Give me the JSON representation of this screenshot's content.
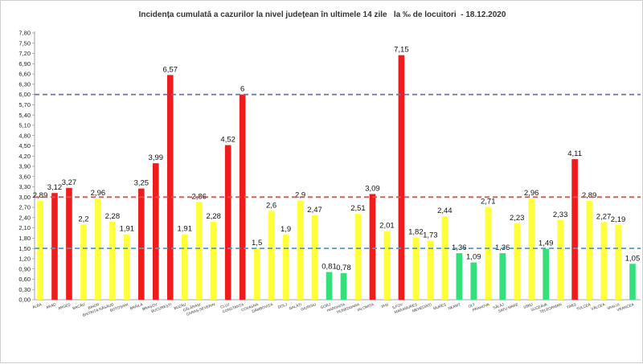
{
  "chart_data": {
    "type": "bar",
    "title": "Incidența cumulată a cazurilor la nivel județean în ultimele 14 zile   la ‰ de locuitori  - 18.12.2020",
    "xlabel": "",
    "ylabel": "",
    "ylim": [
      0,
      7.8
    ],
    "yticks": [
      "0,00",
      "0,30",
      "0,60",
      "0,90",
      "1,20",
      "1,50",
      "1,80",
      "2,10",
      "2,40",
      "2,70",
      "3,00",
      "3,30",
      "3,60",
      "3,90",
      "4,20",
      "4,50",
      "4,80",
      "5,10",
      "5,40",
      "5,70",
      "6,00",
      "6,30",
      "6,60",
      "6,90",
      "7,20",
      "7,50",
      "7,80"
    ],
    "grid": false,
    "reference_lines": [
      {
        "value": 6.0,
        "color": "#6b6fa8"
      },
      {
        "value": 3.0,
        "color": "#d9534f"
      },
      {
        "value": 1.5,
        "color": "#4a9fd0"
      }
    ],
    "colors": {
      "red": "#ee1c1c",
      "yellow": "#ffff3b",
      "green": "#33e07a"
    },
    "categories": [
      "ALBA",
      "ARAD",
      "ARGEȘ",
      "BACĂU",
      "BIHOR",
      "BISTRIȚA NĂSĂUD",
      "BOTOȘANI",
      "BRĂILA",
      "BRAȘOV",
      "BUCUREȘTI",
      "BUZĂU",
      "CĂLĂRAȘI",
      "CARAȘ-SEVERIN",
      "CLUJ",
      "CONSTANȚA",
      "COVASNA",
      "DÂMBOVIȚA",
      "DOLJ",
      "GALAȚI",
      "GIURGIU",
      "GORJ",
      "HARGHITA",
      "HUNEDOARA",
      "IALOMIȚA",
      "IAȘI",
      "ILFOV",
      "MARAMUREȘ",
      "MEHEDINȚI",
      "MUREȘ",
      "NEAMȚ",
      "OLT",
      "PRAHOVA",
      "SĂLAJ",
      "SATU MARE",
      "SIBIU",
      "SUCEAVA",
      "TELEORMAN",
      "TIMIȘ",
      "TULCEA",
      "VÂLCEA",
      "VASLUI",
      "VRANCEA"
    ],
    "values": [
      2.89,
      3.12,
      3.27,
      2.2,
      2.96,
      2.28,
      1.91,
      3.25,
      3.99,
      6.57,
      1.91,
      2.86,
      2.28,
      4.52,
      6,
      1.5,
      2.6,
      1.9,
      2.9,
      2.47,
      0.81,
      0.78,
      2.51,
      3.09,
      2.01,
      7.15,
      1.82,
      1.73,
      2.44,
      1.36,
      1.09,
      2.71,
      1.36,
      2.23,
      2.96,
      1.49,
      2.33,
      4.11,
      2.89,
      2.27,
      2.19,
      1.05
    ],
    "labels": [
      "2,89",
      "3,12",
      "3,27",
      "2,2",
      "2,96",
      "2,28",
      "1,91",
      "3,25",
      "3,99",
      "6,57",
      "1,91",
      "2,86",
      "2,28",
      "4,52",
      "6",
      "1,5",
      "2,6",
      "1,9",
      "2,9",
      "2,47",
      "0,81",
      "0,78",
      "2,51",
      "3,09",
      "2,01",
      "7,15",
      "1,82",
      "1,73",
      "2,44",
      "1,36",
      "1,09",
      "2,71",
      "1,36",
      "2,23",
      "2,96",
      "1,49",
      "2,33",
      "4,11",
      "2,89",
      "2,27",
      "2,19",
      "1,05"
    ],
    "bar_colors": [
      "yellow",
      "red",
      "red",
      "yellow",
      "yellow",
      "yellow",
      "yellow",
      "red",
      "red",
      "red",
      "yellow",
      "yellow",
      "yellow",
      "red",
      "red",
      "yellow",
      "yellow",
      "yellow",
      "yellow",
      "yellow",
      "green",
      "green",
      "yellow",
      "red",
      "yellow",
      "red",
      "yellow",
      "yellow",
      "yellow",
      "green",
      "green",
      "yellow",
      "green",
      "yellow",
      "yellow",
      "green",
      "yellow",
      "red",
      "yellow",
      "yellow",
      "yellow",
      "green"
    ]
  }
}
